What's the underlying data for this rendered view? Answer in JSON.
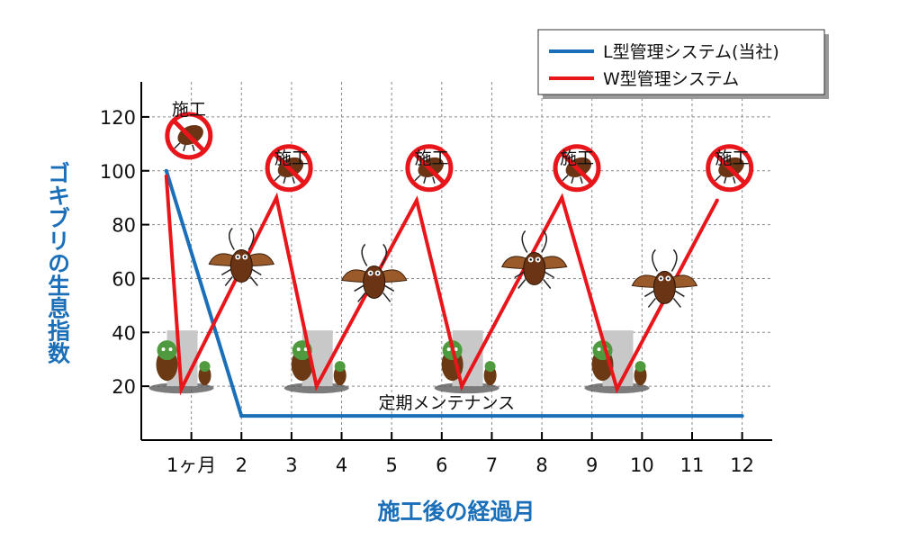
{
  "chart_data": {
    "type": "line",
    "xlabel": "施工後の経過月",
    "ylabel": "ゴキブリの生息指数",
    "xlim": [
      0,
      12.6
    ],
    "ylim": [
      0,
      133
    ],
    "x_ticks": [
      1,
      2,
      3,
      4,
      5,
      6,
      7,
      8,
      9,
      10,
      11,
      12
    ],
    "x_tick_labels": [
      "1ヶ月",
      "2",
      "3",
      "4",
      "5",
      "6",
      "7",
      "8",
      "9",
      "10",
      "11",
      "12"
    ],
    "y_ticks": [
      20,
      40,
      60,
      80,
      100,
      120
    ],
    "grid": true,
    "legend_position": "top-right",
    "series": [
      {
        "name": "L型管理システム(当社)",
        "color": "#1a6fb8",
        "x": [
          0.5,
          2,
          12
        ],
        "y": [
          100,
          9,
          9
        ]
      },
      {
        "name": "W型管理システム",
        "color": "#e8161b",
        "x": [
          0.5,
          0.8,
          2.7,
          3.5,
          5.5,
          6.4,
          8.4,
          9.5,
          11.5
        ],
        "y": [
          98,
          19,
          90,
          20,
          89,
          20,
          90,
          19,
          89
        ]
      }
    ],
    "annotations": [
      {
        "text": "定期メンテナンス",
        "x": 6.1,
        "y": 14
      },
      {
        "text": "施工",
        "x": 0.95,
        "y": 123
      },
      {
        "text": "施工",
        "x": 3.0,
        "y": 105
      },
      {
        "text": "施工",
        "x": 5.8,
        "y": 105
      },
      {
        "text": "施工",
        "x": 8.7,
        "y": 105
      },
      {
        "text": "施工",
        "x": 11.8,
        "y": 105
      }
    ],
    "treatment_markers": [
      {
        "x": 0.95,
        "y": 113
      },
      {
        "x": 2.95,
        "y": 101
      },
      {
        "x": 5.75,
        "y": 101
      },
      {
        "x": 8.7,
        "y": 101
      },
      {
        "x": 11.75,
        "y": 101
      }
    ],
    "roach_rising": [
      {
        "x": 2.0,
        "y": 66
      },
      {
        "x": 4.65,
        "y": 60
      },
      {
        "x": 7.85,
        "y": 65
      },
      {
        "x": 10.45,
        "y": 58
      }
    ],
    "bait_stations": [
      {
        "x": 0.8,
        "y": 20
      },
      {
        "x": 3.5,
        "y": 20
      },
      {
        "x": 6.5,
        "y": 20
      },
      {
        "x": 9.5,
        "y": 20
      }
    ]
  },
  "icons": {
    "no_roach": "no-roach-icon",
    "roach": "cockroach-icon",
    "bait": "bait-station-icon"
  }
}
